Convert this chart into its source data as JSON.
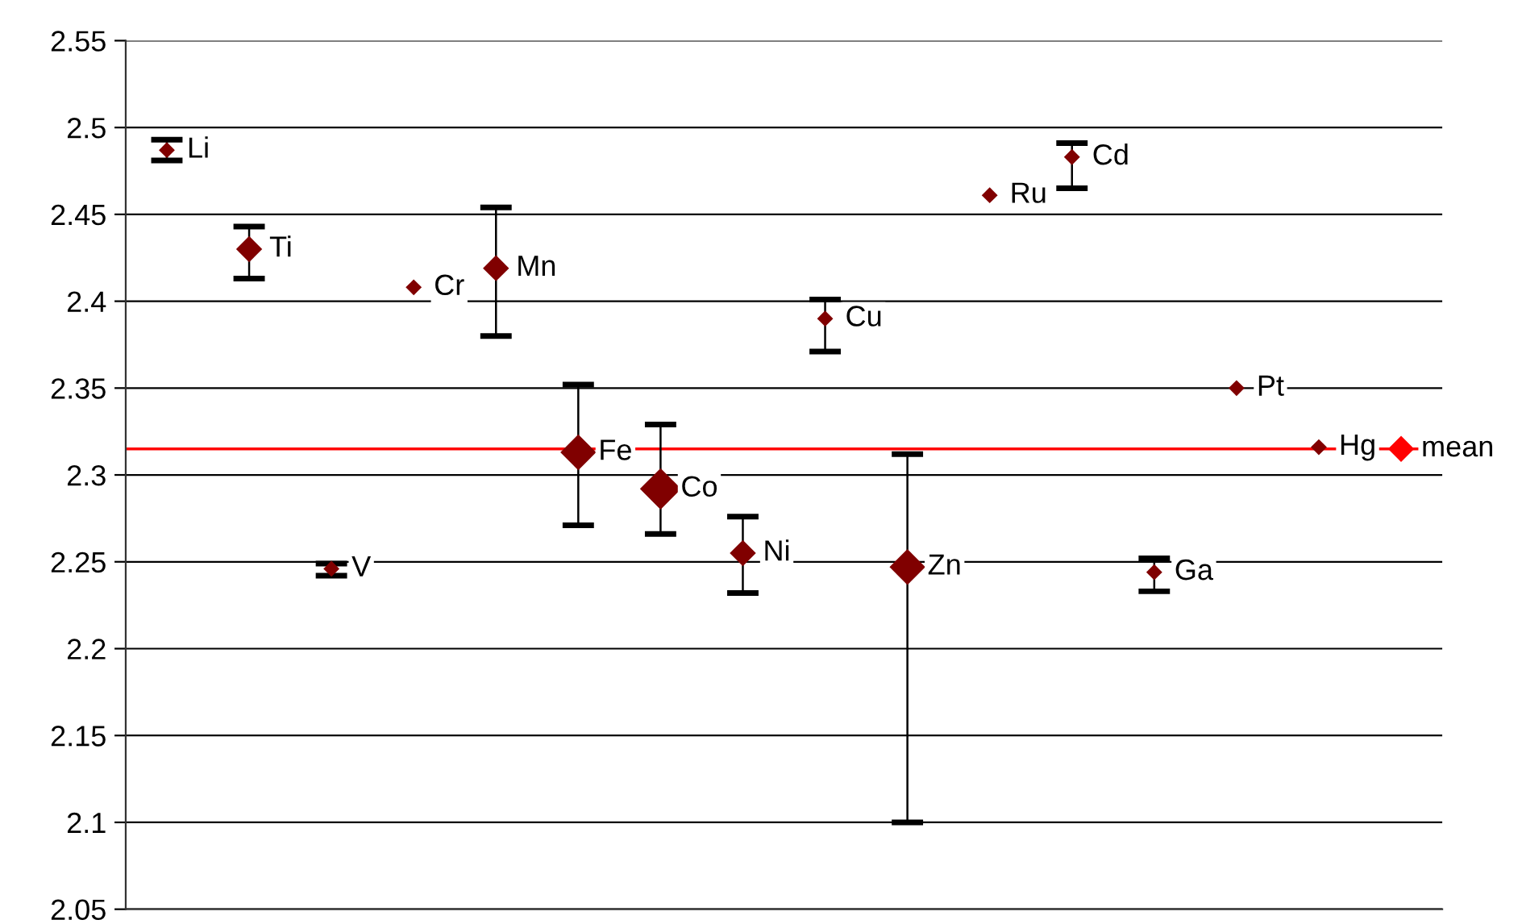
{
  "chart_data": {
    "type": "bubble",
    "categories": [
      null,
      null,
      null,
      null,
      null,
      null,
      null,
      null,
      null,
      null,
      null,
      null,
      null,
      null,
      null,
      null
    ],
    "values": [
      2.487,
      2.43,
      2.246,
      2.408,
      2.419,
      2.313,
      2.292,
      2.255,
      2.39,
      2.247,
      2.461,
      2.483,
      2.244,
      2.35,
      2.316,
      2.315
    ],
    "sizes": [
      0.15,
      0.4,
      0.15,
      0.15,
      0.4,
      0.75,
      1,
      0.4,
      0.15,
      0.75,
      0.15,
      0.15,
      0.15,
      0.15,
      0.15,
      0.4
    ],
    "errors": [
      [
        2.481,
        2.493
      ],
      [
        2.413,
        2.443
      ],
      [
        2.242,
        2.249
      ],
      null,
      [
        2.38,
        2.454
      ],
      [
        2.271,
        2.352
      ],
      [
        2.266,
        2.329
      ],
      [
        2.232,
        2.276
      ],
      [
        2.371,
        2.401
      ],
      [
        2.1,
        2.312
      ],
      null,
      [
        2.465,
        2.491
      ],
      [
        2.233,
        2.252
      ],
      null,
      null,
      null
    ],
    "value_labels": [
      "Li",
      "Ti",
      "V",
      "Cr",
      "Mn",
      "Fe",
      "Co",
      "Ni",
      "Cu",
      "Zn",
      "Ru",
      "Cd",
      "Ga",
      "Pt",
      "Hg",
      "mean"
    ],
    "colors": [
      "#800000",
      "#800000",
      "#800000",
      "#800000",
      "#800000",
      "#800000",
      "#800000",
      "#800000",
      "#800000",
      "#800000",
      "#800000",
      "#800000",
      "#800000",
      "#800000",
      "#800000",
      "#ff0000"
    ],
    "marker": "diamond",
    "ylim": [
      2.05,
      2.55
    ],
    "yticks": [
      {
        "value": 2.05,
        "label": "2.05"
      },
      {
        "value": 2.1,
        "label": "2.1"
      },
      {
        "value": 2.15,
        "label": "2.15"
      },
      {
        "value": 2.2,
        "label": "2.2"
      },
      {
        "value": 2.25,
        "label": "2.25"
      },
      {
        "value": 2.3,
        "label": "2.3"
      },
      {
        "value": 2.35,
        "label": "2.35"
      },
      {
        "value": 2.4,
        "label": "2.4"
      },
      {
        "value": 2.45,
        "label": "2.45"
      },
      {
        "value": 2.5,
        "label": "2.5"
      },
      {
        "value": 2.55,
        "label": "2.55"
      }
    ],
    "ref_lines": [
      {
        "axis": "y",
        "value": 2.315,
        "label": null,
        "color": "#ff0000"
      }
    ],
    "grid": "y",
    "tick_labels": "y"
  }
}
